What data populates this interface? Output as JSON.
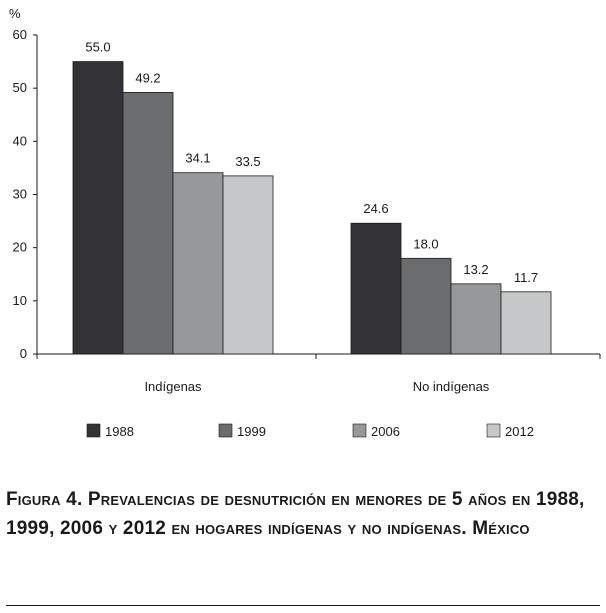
{
  "chart_data": {
    "type": "bar",
    "categories": [
      "Indígenas",
      "No indígenas"
    ],
    "series": [
      {
        "name": "1988",
        "values": [
          55.0,
          24.6
        ],
        "labels": [
          "55.0",
          "24.6"
        ],
        "color": "#333335"
      },
      {
        "name": "1999",
        "values": [
          49.2,
          18.0
        ],
        "labels": [
          "49.2",
          "18.0"
        ],
        "color": "#6b6c6e"
      },
      {
        "name": "2006",
        "values": [
          34.1,
          13.2
        ],
        "labels": [
          "34.1",
          "13.2"
        ],
        "color": "#97989a"
      },
      {
        "name": "2012",
        "values": [
          33.5,
          11.7
        ],
        "labels": [
          "33.5",
          "11.7"
        ],
        "color": "#c6c7c8"
      }
    ],
    "ylabel": "%",
    "ylim": [
      0,
      60
    ],
    "yticks": [
      "0",
      "10",
      "20",
      "30",
      "40",
      "50",
      "60"
    ],
    "grid": false,
    "legend": "bottom"
  },
  "caption": "Figura 4. Prevalencias de desnutrición en menores de 5 años en 1988, 1999, 2006 y 2012 en hogares indígenas y no indígenas. México"
}
